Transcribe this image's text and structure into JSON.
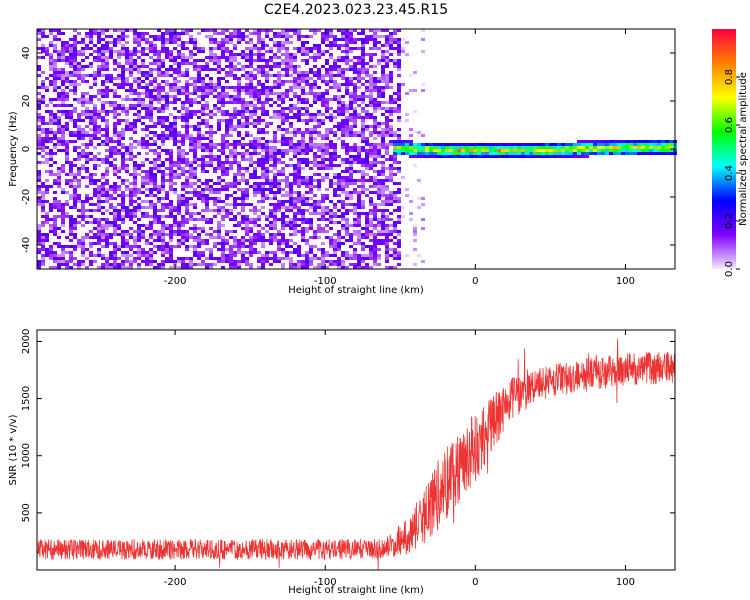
{
  "title": "C2E4.2023.023.23.45.R15",
  "chart_data": [
    {
      "type": "heatmap",
      "title": "C2E4.2023.023.23.45.R15",
      "xlabel": "Height of straight line (km)",
      "ylabel": "Frequency (Hz)",
      "xlim": [
        -292,
        133
      ],
      "ylim": [
        -50,
        50
      ],
      "xticks": [
        -200,
        -100,
        0,
        100
      ],
      "yticks": [
        -40,
        -20,
        0,
        20,
        40
      ],
      "colorbar": {
        "label": "Normalized spectral amplitude",
        "range": [
          0,
          1
        ],
        "ticks": [
          "0.0",
          "0.2",
          "0.4",
          "0.6",
          "0.8"
        ],
        "colormap": [
          "#f3e8ff",
          "#7f00ff",
          "#0000ff",
          "#00ffff",
          "#00ff00",
          "#ffff00",
          "#ff8000",
          "#ff0040"
        ]
      },
      "regions": [
        {
          "name": "broadband-noise",
          "x_range": [
            -292,
            -50
          ],
          "freq_range": [
            -50,
            50
          ],
          "amplitude": [
            0.05,
            0.2
          ]
        },
        {
          "name": "transition",
          "x_range": [
            -50,
            -35
          ],
          "freq_range": [
            -50,
            50
          ],
          "amplitude": [
            0.0,
            0.1
          ]
        },
        {
          "name": "tone",
          "x_range": [
            -57,
            133
          ],
          "center_freq": [
            [
              -57,
              1.0
            ],
            [
              -40,
              0.5
            ],
            [
              -20,
              0.0
            ],
            [
              0,
              0.0
            ],
            [
              20,
              0.0
            ],
            [
              50,
              0.2
            ],
            [
              80,
              0.8
            ],
            [
              100,
              1.0
            ],
            [
              133,
              1.5
            ]
          ],
          "amplitude": [
            0.3,
            0.95
          ]
        }
      ],
      "grid": false
    },
    {
      "type": "line",
      "xlabel": "Height of straight line (km)",
      "ylabel": "SNR (10 * v/v)",
      "xlim": [
        -292,
        133
      ],
      "ylim": [
        0,
        2100
      ],
      "xticks": [
        -200,
        -100,
        0,
        100
      ],
      "yticks": [
        500,
        1000,
        1500,
        2000
      ],
      "color": "#ee3333",
      "series": [
        {
          "x": [
            -292,
            -250,
            -200,
            -150,
            -100,
            -60,
            -45,
            -35,
            -25,
            -15,
            -5,
            5,
            15,
            25,
            40,
            60,
            80,
            100,
            133
          ],
          "y": [
            180,
            180,
            180,
            180,
            180,
            190,
            300,
            450,
            650,
            850,
            1000,
            1150,
            1350,
            1500,
            1620,
            1680,
            1720,
            1760,
            1770
          ]
        }
      ],
      "noise_amplitude": [
        [
          -292,
          90
        ],
        [
          -60,
          90
        ],
        [
          -45,
          160
        ],
        [
          -20,
          350
        ],
        [
          0,
          300
        ],
        [
          20,
          200
        ],
        [
          40,
          150
        ],
        [
          133,
          140
        ]
      ],
      "grid": false
    }
  ]
}
